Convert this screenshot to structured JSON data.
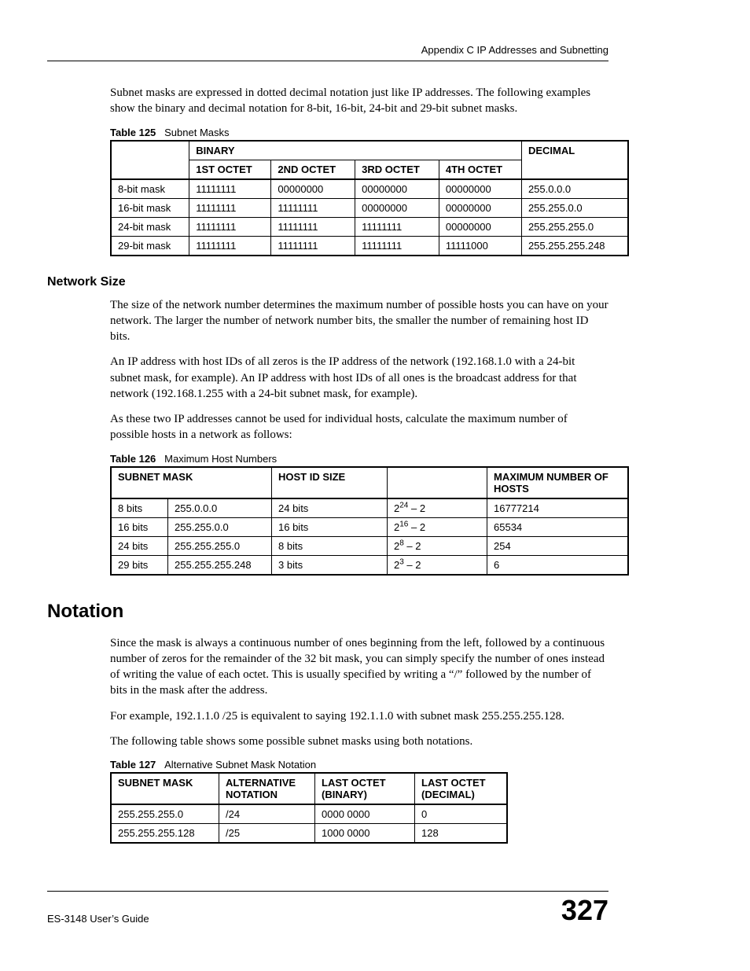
{
  "header": {
    "running": "Appendix C IP Addresses and Subnetting"
  },
  "para1": "Subnet masks are expressed in dotted decimal notation just like IP addresses. The following examples show the binary and decimal notation for 8-bit, 16-bit, 24-bit and 29-bit subnet masks.",
  "table125": {
    "caption_num": "Table 125",
    "caption_title": "Subnet Masks",
    "spanBinary": "BINARY",
    "cols": [
      "1ST OCTET",
      "2ND OCTET",
      "3RD OCTET",
      "4TH OCTET"
    ],
    "decimal_label": "DECIMAL",
    "rows": [
      {
        "label": "8-bit mask",
        "o": [
          "11111111",
          "00000000",
          "00000000",
          "00000000"
        ],
        "dec": "255.0.0.0"
      },
      {
        "label": "16-bit mask",
        "o": [
          "11111111",
          "11111111",
          "00000000",
          "00000000"
        ],
        "dec": "255.255.0.0"
      },
      {
        "label": "24-bit mask",
        "o": [
          "11111111",
          "11111111",
          "11111111",
          "00000000"
        ],
        "dec": "255.255.255.0"
      },
      {
        "label": "29-bit mask",
        "o": [
          "11111111",
          "11111111",
          "11111111",
          "11111000"
        ],
        "dec": "255.255.255.248"
      }
    ]
  },
  "networkSize": {
    "heading": "Network Size",
    "p1": "The size of the network number determines the maximum number of possible hosts you can have on your network. The larger the number of network number bits, the smaller the number of remaining host ID bits.",
    "p2": "An IP address with host IDs of all zeros is the IP address of the network (192.168.1.0 with a 24-bit subnet mask, for example). An IP address with host IDs of all ones is the broadcast address for that network  (192.168.1.255 with a 24-bit subnet mask, for example).",
    "p3": "As these two IP addresses cannot be used for individual hosts, calculate the maximum number of possible hosts in a network as follows:"
  },
  "table126": {
    "caption_num": "Table 126",
    "caption_title": "Maximum Host Numbers",
    "headers": [
      "SUBNET MASK",
      "HOST ID SIZE",
      "",
      "MAXIMUM NUMBER OF HOSTS"
    ],
    "rows": [
      {
        "bits": "8 bits",
        "mask": "255.0.0.0",
        "hsize": "24 bits",
        "exp": "24",
        "max": "16777214"
      },
      {
        "bits": "16 bits",
        "mask": "255.255.0.0",
        "hsize": "16 bits",
        "exp": "16",
        "max": "65534"
      },
      {
        "bits": "24 bits",
        "mask": "255.255.255.0",
        "hsize": "8 bits",
        "exp": "8",
        "max": "254"
      },
      {
        "bits": "29 bits",
        "mask": "255.255.255.248",
        "hsize": "3 bits",
        "exp": "3",
        "max": "6"
      }
    ]
  },
  "notation": {
    "heading": "Notation",
    "p1": "Since the mask is always a continuous number of ones beginning from the left, followed by a continuous number of zeros for the remainder of the 32 bit mask, you can simply specify the number of ones instead of writing the value of each octet. This is usually specified by writing a “/” followed by the number of bits in the mask after the address.",
    "p2": "For example, 192.1.1.0 /25 is equivalent to saying 192.1.1.0 with subnet mask 255.255.255.128.",
    "p3": "The following table shows some possible subnet masks using both notations."
  },
  "table127": {
    "caption_num": "Table 127",
    "caption_title": "Alternative Subnet Mask Notation",
    "headers": [
      "SUBNET MASK",
      "ALTERNATIVE NOTATION",
      "LAST OCTET (BINARY)",
      "LAST OCTET (DECIMAL)"
    ],
    "rows": [
      {
        "mask": "255.255.255.0",
        "alt": "/24",
        "bin": "0000 0000",
        "dec": "0"
      },
      {
        "mask": "255.255.255.128",
        "alt": "/25",
        "bin": "1000 0000",
        "dec": "128"
      }
    ]
  },
  "footer": {
    "guide": "ES-3148 User’s Guide",
    "page": "327"
  }
}
